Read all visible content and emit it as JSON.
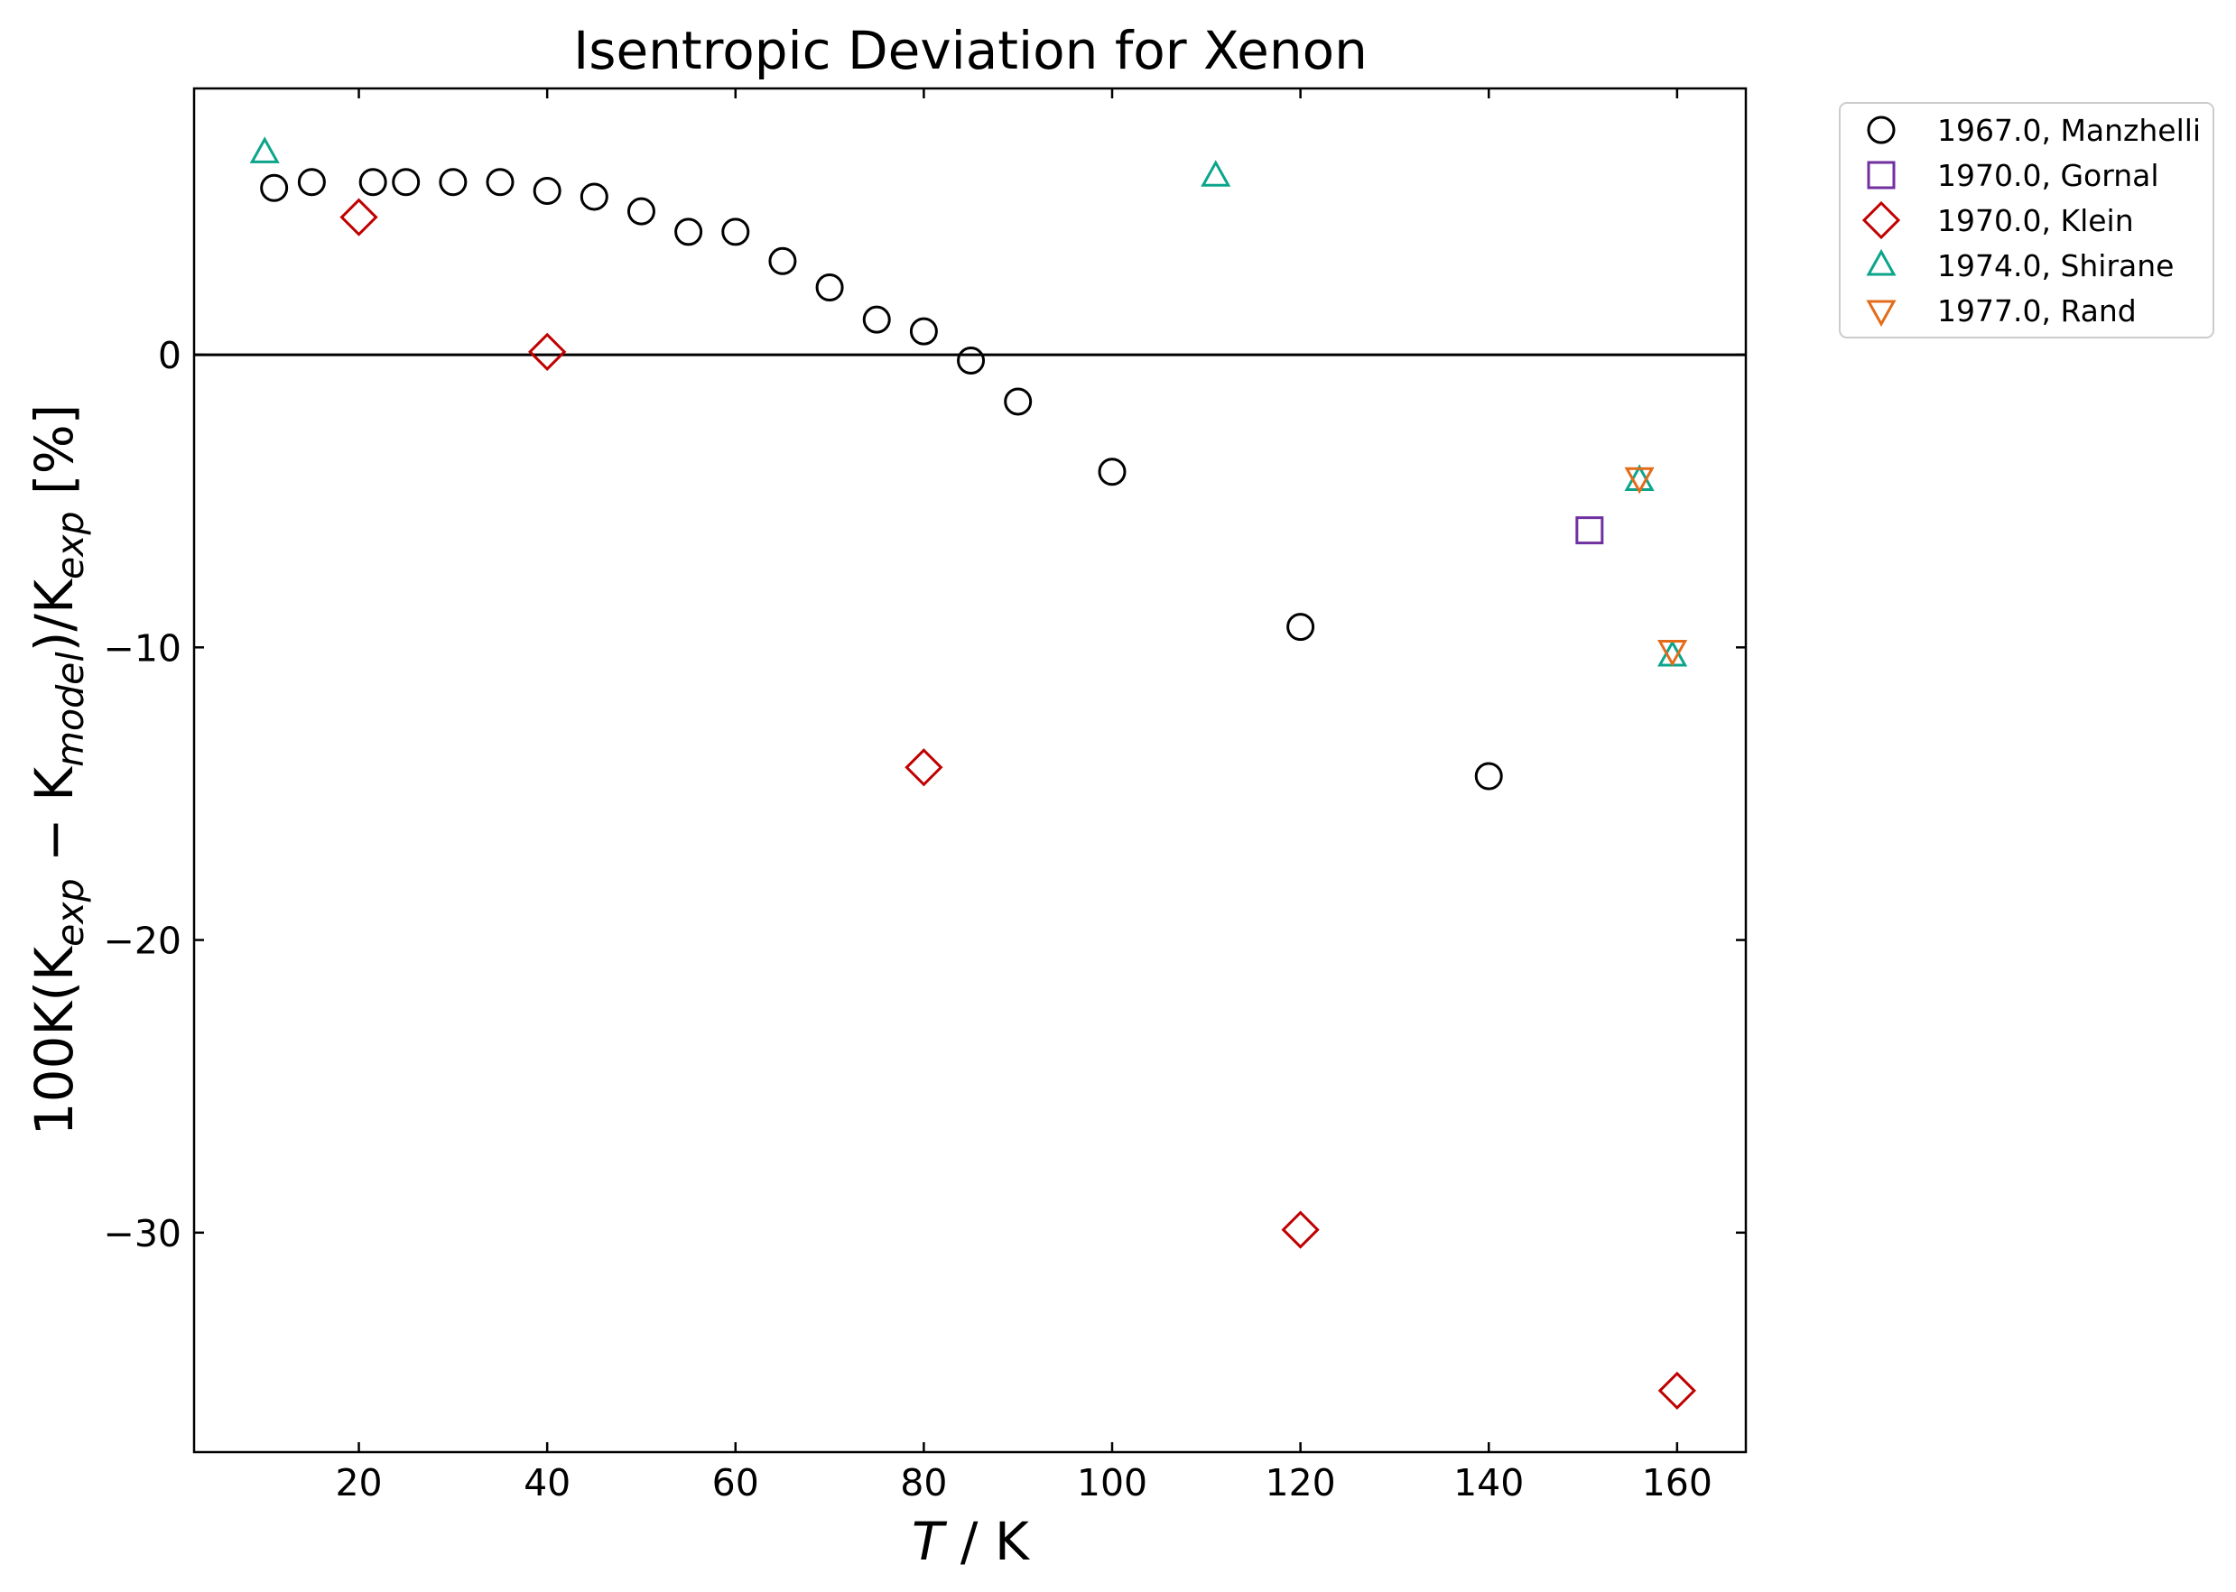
{
  "chart_data": {
    "type": "scatter",
    "title": "Isentropic Deviation for Xenon",
    "xlabel": {
      "symbol": "T",
      "unit": " / K"
    },
    "ylabel": [
      {
        "text": "100K(K",
        "sub": false
      },
      {
        "text": "exp",
        "sub": true
      },
      {
        "text": " − K",
        "sub": false
      },
      {
        "text": "model",
        "sub": true
      },
      {
        "text": ")/K",
        "sub": false
      },
      {
        "text": "exp",
        "sub": true
      },
      {
        "text": " [%]",
        "sub": false
      }
    ],
    "xlim": [
      2.5,
      167.3
    ],
    "ylim": [
      -37.5,
      9.1
    ],
    "xticks": [
      20,
      40,
      60,
      80,
      100,
      120,
      140,
      160
    ],
    "xtick_labels": [
      "20",
      "40",
      "60",
      "80",
      "100",
      "120",
      "140",
      "160"
    ],
    "yticks": [
      0,
      -10,
      -20,
      -30
    ],
    "ytick_labels": [
      "0",
      "−10",
      "−20",
      "−30"
    ],
    "reference_line_y": 0,
    "grid": false,
    "legend_position": "outside-top-right",
    "series": [
      {
        "name": "1967.0, Manzhelli",
        "marker": "circle",
        "color": "#000000",
        "x": [
          11,
          15,
          21.5,
          25,
          30,
          35,
          40,
          45,
          50,
          55,
          60,
          65,
          70,
          75,
          80,
          85,
          90,
          100,
          120,
          140
        ],
        "y": [
          5.7,
          5.9,
          5.9,
          5.9,
          5.9,
          5.9,
          5.6,
          5.4,
          4.9,
          4.2,
          4.2,
          3.2,
          2.3,
          1.2,
          0.8,
          -0.2,
          -1.6,
          -4.0,
          -9.3,
          -14.4
        ]
      },
      {
        "name": "1970.0, Gornal",
        "marker": "square",
        "color": "#7030a0",
        "x": [
          150.7
        ],
        "y": [
          -6.0
        ]
      },
      {
        "name": "1970.0, Klein",
        "marker": "diamond",
        "color": "#c00000",
        "x": [
          20,
          40,
          80,
          120,
          160
        ],
        "y": [
          4.7,
          0.1,
          -14.1,
          -29.9,
          -35.4
        ]
      },
      {
        "name": "1974.0, Shirane",
        "marker": "triangle-up",
        "color": "#0ca58c",
        "x": [
          10,
          111,
          156,
          159.5
        ],
        "y": [
          6.9,
          6.1,
          -4.3,
          -10.3
        ]
      },
      {
        "name": "1977.0, Rand",
        "marker": "triangle-down",
        "color": "#e36c1a",
        "x": [
          156,
          159.5
        ],
        "y": [
          -4.2,
          -10.1
        ]
      }
    ]
  }
}
